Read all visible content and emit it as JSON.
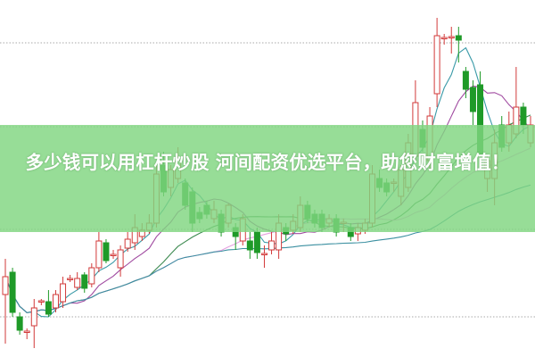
{
  "banner": {
    "text": "多少钱可以用杠杆炒股 河间配资优选平台，助您财富增值！"
  },
  "chart_data": {
    "type": "candlestick",
    "title": "",
    "xlabel": "",
    "ylabel": "",
    "ylim": [
      0,
      400
    ],
    "grid": "dotted horizontal",
    "colors": {
      "up": "#d23a3a",
      "down": "#1f9a28",
      "ma5": "#3a9aa8",
      "ma10": "#a04aa0",
      "ma20": "#3d8a50",
      "ma30": "#e6a0e0",
      "ma60": "#3a8fa0"
    },
    "candles_ohlc": [
      [
        70,
        90,
        110,
        15
      ],
      [
        95,
        50,
        100,
        45
      ],
      [
        45,
        30,
        50,
        25
      ],
      [
        28,
        29,
        32,
        20
      ],
      [
        35,
        55,
        65,
        10
      ],
      [
        62,
        63,
        65,
        58
      ],
      [
        62,
        48,
        75,
        45
      ],
      [
        55,
        70,
        75,
        50
      ],
      [
        62,
        82,
        90,
        55
      ],
      [
        87,
        88,
        92,
        84
      ],
      [
        78,
        88,
        95,
        75
      ],
      [
        92,
        77,
        95,
        72
      ],
      [
        82,
        100,
        105,
        78
      ],
      [
        100,
        130,
        140,
        95
      ],
      [
        128,
        108,
        132,
        105
      ],
      [
        114,
        115,
        120,
        110
      ],
      [
        100,
        120,
        125,
        90
      ],
      [
        122,
        132,
        140,
        118
      ],
      [
        128,
        145,
        160,
        120
      ],
      [
        135,
        142,
        150,
        130
      ],
      [
        142,
        150,
        160,
        138
      ],
      [
        150,
        205,
        215,
        145
      ],
      [
        215,
        185,
        230,
        180
      ],
      [
        190,
        210,
        215,
        180
      ],
      [
        200,
        220,
        235,
        195
      ],
      [
        195,
        170,
        200,
        165
      ],
      [
        185,
        150,
        190,
        140
      ],
      [
        162,
        155,
        168,
        150
      ],
      [
        170,
        160,
        175,
        155
      ],
      [
        155,
        165,
        175,
        150
      ],
      [
        160,
        140,
        165,
        135
      ],
      [
        150,
        170,
        172,
        145
      ],
      [
        145,
        135,
        150,
        120
      ],
      [
        130,
        155,
        160,
        125
      ],
      [
        130,
        120,
        140,
        110
      ],
      [
        140,
        117,
        145,
        110
      ],
      [
        115,
        116,
        125,
        100
      ],
      [
        120,
        130,
        140,
        115
      ],
      [
        120,
        150,
        160,
        110
      ],
      [
        145,
        138,
        150,
        130
      ],
      [
        142,
        152,
        160,
        138
      ],
      [
        145,
        170,
        180,
        140
      ],
      [
        170,
        155,
        175,
        150
      ],
      [
        160,
        150,
        165,
        145
      ],
      [
        160,
        145,
        165,
        140
      ],
      [
        150,
        155,
        160,
        145
      ],
      [
        155,
        140,
        160,
        135
      ],
      [
        150,
        151,
        155,
        140
      ],
      [
        145,
        135,
        150,
        130
      ],
      [
        138,
        145,
        150,
        130
      ],
      [
        142,
        150,
        155,
        138
      ],
      [
        150,
        205,
        215,
        145
      ],
      [
        200,
        190,
        210,
        185
      ],
      [
        195,
        185,
        200,
        180
      ],
      [
        195,
        196,
        200,
        185
      ],
      [
        180,
        210,
        215,
        170
      ],
      [
        190,
        240,
        250,
        185
      ],
      [
        225,
        285,
        310,
        220
      ],
      [
        255,
        235,
        265,
        230
      ],
      [
        220,
        270,
        280,
        210
      ],
      [
        295,
        360,
        380,
        280
      ],
      [
        357,
        358,
        362,
        350
      ],
      [
        358,
        359,
        370,
        340
      ],
      [
        360,
        355,
        370,
        330
      ],
      [
        320,
        300,
        325,
        290
      ],
      [
        302,
        275,
        310,
        260
      ],
      [
        305,
        225,
        320,
        215
      ],
      [
        200,
        220,
        225,
        185
      ],
      [
        200,
        240,
        255,
        170
      ],
      [
        260,
        235,
        270,
        230
      ],
      [
        240,
        260,
        275,
        230
      ],
      [
        250,
        280,
        325,
        245
      ],
      [
        280,
        260,
        285,
        250
      ],
      [
        240,
        260,
        270,
        235
      ]
    ],
    "gridlines": [
      352,
      258,
      143,
      45
    ]
  }
}
